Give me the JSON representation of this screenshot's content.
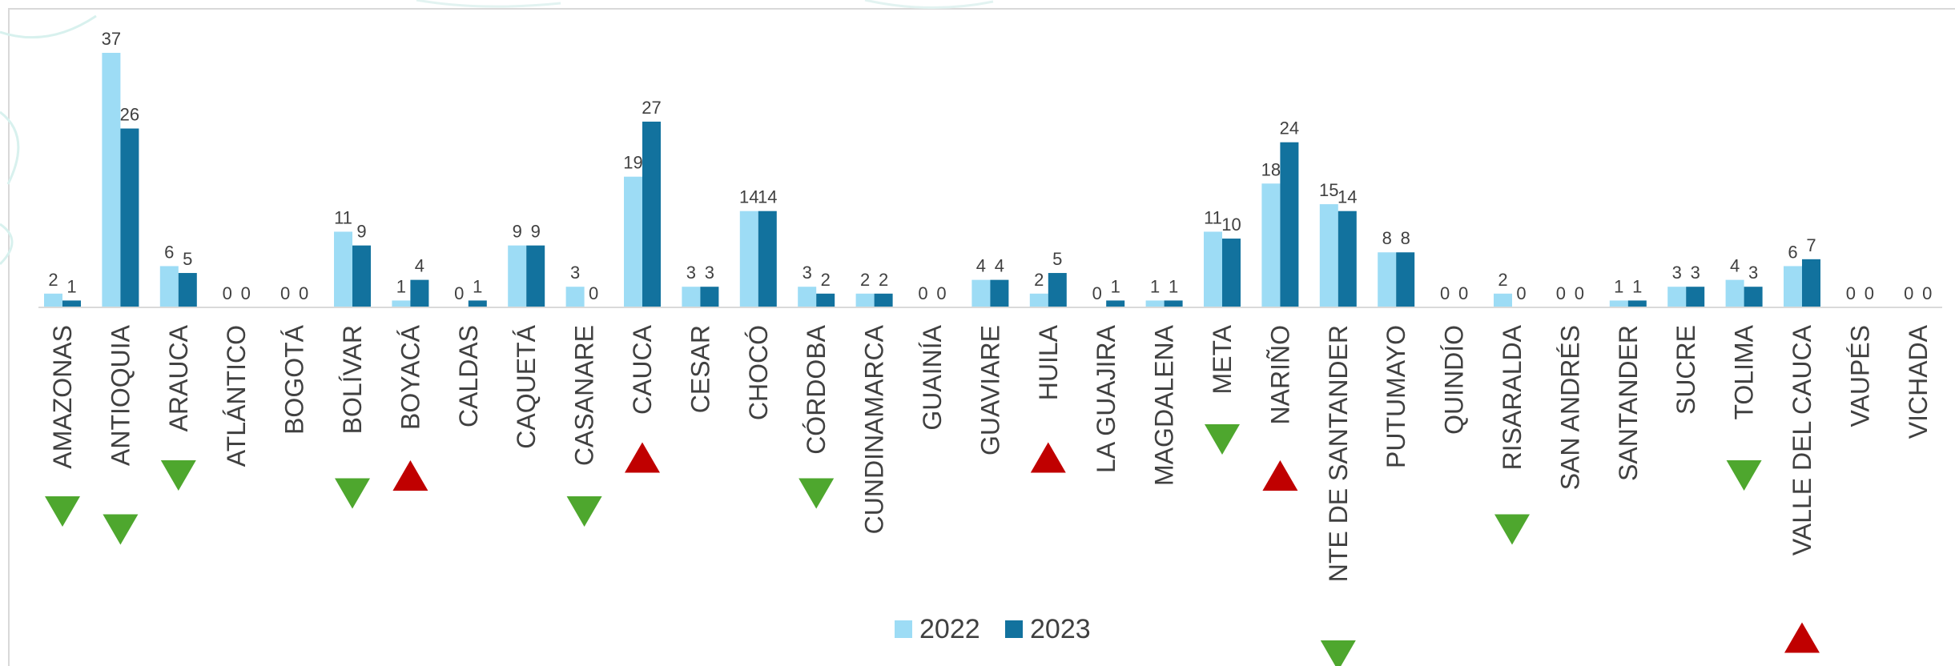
{
  "chart_data": {
    "type": "bar",
    "categories": [
      "AMAZONAS",
      "ANTIOQUIA",
      "ARAUCA",
      "ATLÁNTICO",
      "BOGOTÁ",
      "BOLÍVAR",
      "BOYACÁ",
      "CALDAS",
      "CAQUETÁ",
      "CASANARE",
      "CAUCA",
      "CESAR",
      "CHOCÓ",
      "CÓRDOBA",
      "CUNDINAMARCA",
      "GUAINÍA",
      "GUAVIARE",
      "HUILA",
      "LA GUAJIRA",
      "MAGDALENA",
      "META",
      "NARIÑO",
      "NTE DE SANTANDER",
      "PUTUMAYO",
      "QUINDÍO",
      "RISARALDA",
      "SAN ANDRÉS",
      "SANTANDER",
      "SUCRE",
      "TOLIMA",
      "VALLE DEL CAUCA",
      "VAUPÉS",
      "VICHADA"
    ],
    "series": [
      {
        "name": "2022",
        "color": "#9ddcf5",
        "values": [
          2,
          37,
          6,
          0,
          0,
          11,
          1,
          0,
          9,
          3,
          19,
          3,
          14,
          3,
          2,
          0,
          4,
          2,
          0,
          1,
          11,
          18,
          15,
          8,
          0,
          2,
          0,
          1,
          3,
          4,
          6,
          0,
          0
        ]
      },
      {
        "name": "2023",
        "color": "#12729e",
        "values": [
          1,
          26,
          5,
          0,
          0,
          9,
          4,
          1,
          9,
          0,
          27,
          3,
          14,
          2,
          2,
          0,
          4,
          5,
          1,
          1,
          10,
          24,
          14,
          8,
          0,
          0,
          0,
          1,
          3,
          3,
          7,
          0,
          0
        ]
      }
    ],
    "trend": [
      "down",
      "down",
      "down",
      "none",
      "none",
      "down",
      "up",
      "none",
      "none",
      "down",
      "up",
      "none",
      "none",
      "down",
      "none",
      "none",
      "none",
      "up",
      "none",
      "none",
      "down",
      "up",
      "down",
      "none",
      "none",
      "down",
      "none",
      "none",
      "none",
      "down",
      "up",
      "none",
      "none"
    ],
    "trend_colors": {
      "up": "#c00000",
      "down": "#4ea72e"
    },
    "ylim": [
      0,
      40
    ],
    "legend_position": "bottom",
    "grid": false
  }
}
